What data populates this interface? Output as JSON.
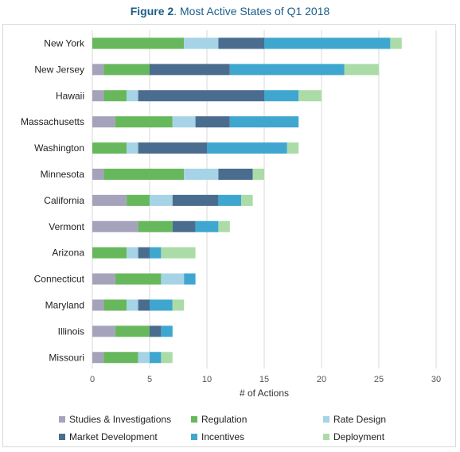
{
  "header": {
    "figure_label": "Figure 2",
    "title_rest": ". Most Active States of Q1 2018"
  },
  "chart_data": {
    "type": "bar",
    "orientation": "horizontal",
    "stacked": true,
    "categories": [
      "New York",
      "New Jersey",
      "Hawaii",
      "Massachusetts",
      "Washington",
      "Minnesota",
      "California",
      "Vermont",
      "Arizona",
      "Connecticut",
      "Maryland",
      "Illinois",
      "Missouri"
    ],
    "series": [
      {
        "name": "Studies & Investigations",
        "color": "#a5a3bb",
        "values": [
          0,
          1,
          1,
          2,
          0,
          1,
          3,
          4,
          0,
          2,
          1,
          2,
          1
        ]
      },
      {
        "name": "Regulation",
        "color": "#67b85c",
        "values": [
          8,
          4,
          2,
          5,
          3,
          7,
          2,
          3,
          3,
          4,
          2,
          3,
          3
        ]
      },
      {
        "name": "Rate Design",
        "color": "#a6d3e6",
        "values": [
          3,
          0,
          1,
          2,
          1,
          3,
          2,
          0,
          1,
          2,
          1,
          0,
          1
        ]
      },
      {
        "name": "Market Development",
        "color": "#4a6d8f",
        "values": [
          4,
          7,
          11,
          3,
          6,
          3,
          4,
          2,
          1,
          0,
          1,
          1,
          0
        ]
      },
      {
        "name": "Incentives",
        "color": "#3fa7cf",
        "values": [
          11,
          10,
          3,
          6,
          7,
          0,
          2,
          2,
          1,
          1,
          2,
          1,
          1
        ]
      },
      {
        "name": "Deployment",
        "color": "#abdca7",
        "values": [
          1,
          3,
          2,
          0,
          1,
          1,
          1,
          1,
          3,
          0,
          1,
          0,
          1
        ]
      }
    ],
    "xlabel": "# of Actions",
    "xlim": [
      0,
      30
    ],
    "xticks": [
      0,
      5,
      10,
      15,
      20,
      25,
      30
    ],
    "grid": "vertical",
    "legend_position": "bottom"
  }
}
